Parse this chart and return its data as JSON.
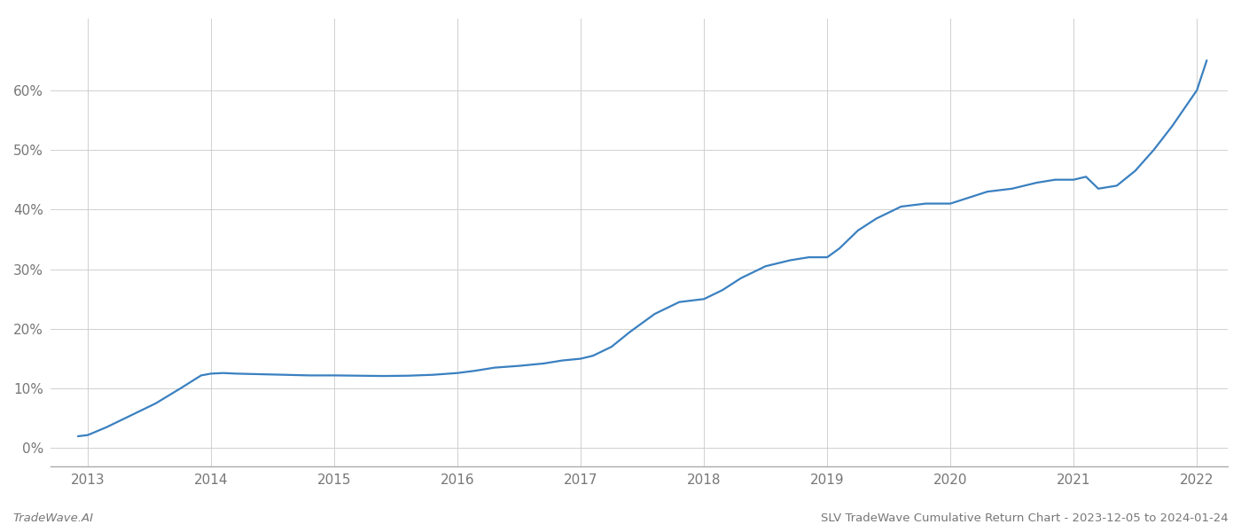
{
  "title": "SLV TradeWave Cumulative Return Chart - 2023-12-05 to 2024-01-24",
  "footer_left": "TradeWave.AI",
  "x_values": [
    2012.92,
    2013.0,
    2013.15,
    2013.35,
    2013.55,
    2013.75,
    2013.92,
    2014.0,
    2014.1,
    2014.2,
    2014.4,
    2014.6,
    2014.8,
    2015.0,
    2015.2,
    2015.4,
    2015.6,
    2015.8,
    2016.0,
    2016.15,
    2016.3,
    2016.5,
    2016.7,
    2016.85,
    2017.0,
    2017.1,
    2017.25,
    2017.4,
    2017.6,
    2017.8,
    2018.0,
    2018.15,
    2018.3,
    2018.5,
    2018.7,
    2018.85,
    2019.0,
    2019.1,
    2019.25,
    2019.4,
    2019.6,
    2019.8,
    2020.0,
    2020.15,
    2020.3,
    2020.5,
    2020.7,
    2020.85,
    2021.0,
    2021.1,
    2021.2,
    2021.35,
    2021.5,
    2021.65,
    2021.8,
    2022.0,
    2022.08
  ],
  "y_values": [
    2.0,
    2.2,
    3.5,
    5.5,
    7.5,
    10.0,
    12.2,
    12.5,
    12.6,
    12.5,
    12.4,
    12.3,
    12.2,
    12.2,
    12.15,
    12.1,
    12.15,
    12.3,
    12.6,
    13.0,
    13.5,
    13.8,
    14.2,
    14.7,
    15.0,
    15.5,
    17.0,
    19.5,
    22.5,
    24.5,
    25.0,
    26.5,
    28.5,
    30.5,
    31.5,
    32.0,
    32.0,
    33.5,
    36.5,
    38.5,
    40.5,
    41.0,
    41.0,
    42.0,
    43.0,
    43.5,
    44.5,
    45.0,
    45.0,
    45.5,
    43.5,
    44.0,
    46.5,
    50.0,
    54.0,
    60.0,
    65.0
  ],
  "line_color": "#3a80c0",
  "line_width": 1.6,
  "background_color": "#ffffff",
  "grid_color": "#d0d0d0",
  "yticks": [
    0,
    10,
    20,
    30,
    40,
    50,
    60
  ],
  "xticks": [
    2013,
    2014,
    2015,
    2016,
    2017,
    2018,
    2019,
    2020,
    2021,
    2022
  ],
  "ylim": [
    -3,
    72
  ],
  "xlim": [
    2012.7,
    2022.25
  ],
  "tick_label_color": "#777777",
  "spine_color": "#aaaaaa",
  "footer_fontsize": 9.5,
  "title_fontsize": 9.5
}
